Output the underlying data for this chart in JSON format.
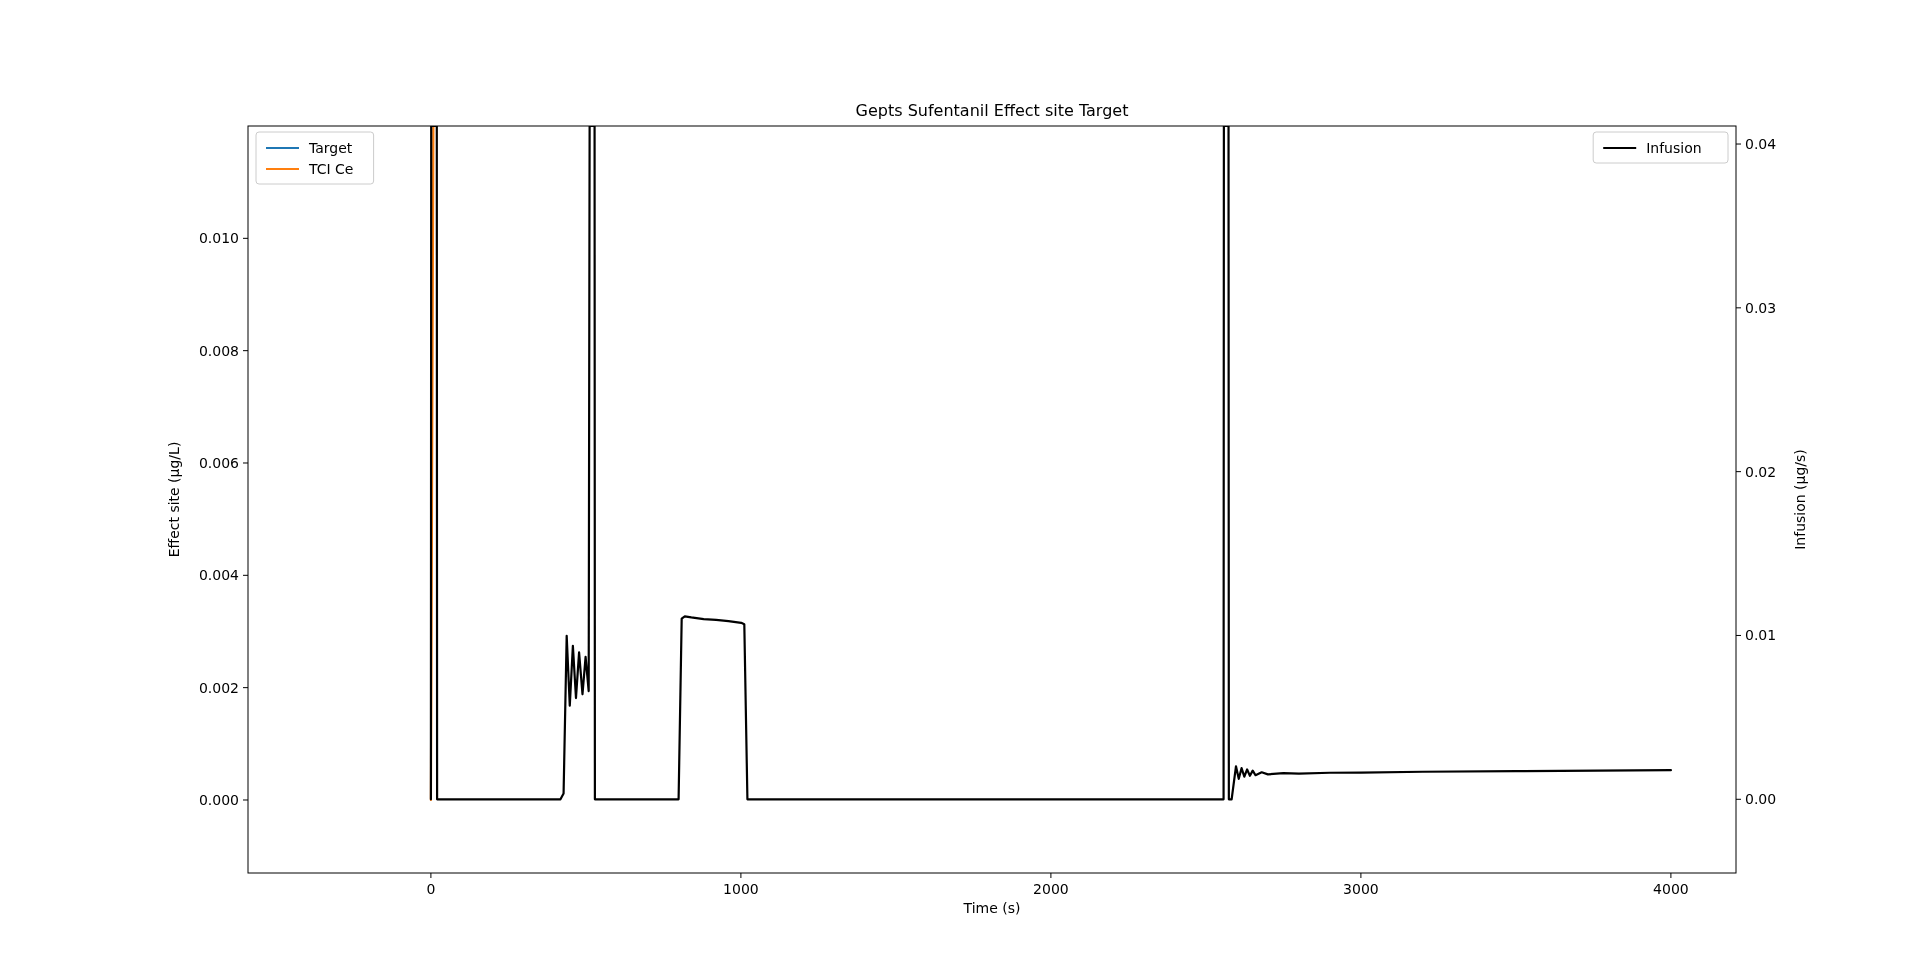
{
  "chart_data": {
    "type": "line",
    "title": "Gepts Sufentanil Effect site Target",
    "xlabel": "Time (s)",
    "ylabel": "Effect site (µg/L)",
    "y2label": "Infusion (µg/s)",
    "xlim": [
      -590,
      4210
    ],
    "xticks": [
      0,
      1000,
      2000,
      3000,
      4000
    ],
    "ylim": [
      -0.0013,
      0.012
    ],
    "yticks": [
      {
        "value": 0,
        "label": "0.000"
      },
      {
        "value": 0.002,
        "label": "0.002"
      },
      {
        "value": 0.004,
        "label": "0.004"
      },
      {
        "value": 0.006,
        "label": "0.006"
      },
      {
        "value": 0.008,
        "label": "0.008"
      },
      {
        "value": 0.01,
        "label": "0.010"
      }
    ],
    "y2lim": [
      -0.0045,
      0.0411
    ],
    "y2ticks": [
      {
        "value": 0,
        "label": "0.00"
      },
      {
        "value": 0.01,
        "label": "0.01"
      },
      {
        "value": 0.02,
        "label": "0.02"
      },
      {
        "value": 0.03,
        "label": "0.03"
      },
      {
        "value": 0.04,
        "label": "0.04"
      }
    ],
    "legend": "top left",
    "grid": false,
    "line_style": "solid",
    "series": [
      {
        "name": "Target",
        "color": "#1f77b4"
      },
      {
        "name": "TCI Ce",
        "color": "#ff7f0e",
        "x": [
          0,
          8
        ],
        "values": [
          0,
          0.012
        ]
      },
      {
        "name": "Infusion",
        "color": "#000000",
        "axis": "y2",
        "x": [
          0,
          1,
          19,
          20,
          418,
          428,
          438,
          448,
          458,
          468,
          478,
          489,
          499,
          509,
          512,
          528,
          529,
          799,
          809,
          819,
          840,
          880,
          920,
          960,
          1001,
          1011,
          1021,
          2557,
          2558,
          2573,
          2574,
          2583,
          2597,
          2606,
          2615,
          2624,
          2633,
          2642,
          2651,
          2660,
          2680,
          2700,
          2750,
          2800,
          2900,
          3000,
          3200,
          3500,
          4000
        ],
        "values": [
          0,
          0.0411,
          0.0411,
          0,
          0,
          0.00035,
          0.00998,
          0.00571,
          0.00937,
          0.00618,
          0.00897,
          0.00641,
          0.00869,
          0.0066,
          0.0411,
          0.0411,
          0,
          0,
          0.01103,
          0.01117,
          0.0111,
          0.011,
          0.01095,
          0.01088,
          0.01077,
          0.01068,
          0,
          0,
          0.0411,
          0.0411,
          0,
          0,
          0.00201,
          0.00125,
          0.0019,
          0.00138,
          0.00182,
          0.00143,
          0.00175,
          0.00147,
          0.00165,
          0.00152,
          0.0016,
          0.00157,
          0.00162,
          0.00163,
          0.00168,
          0.00172,
          0.00178
        ]
      }
    ]
  }
}
